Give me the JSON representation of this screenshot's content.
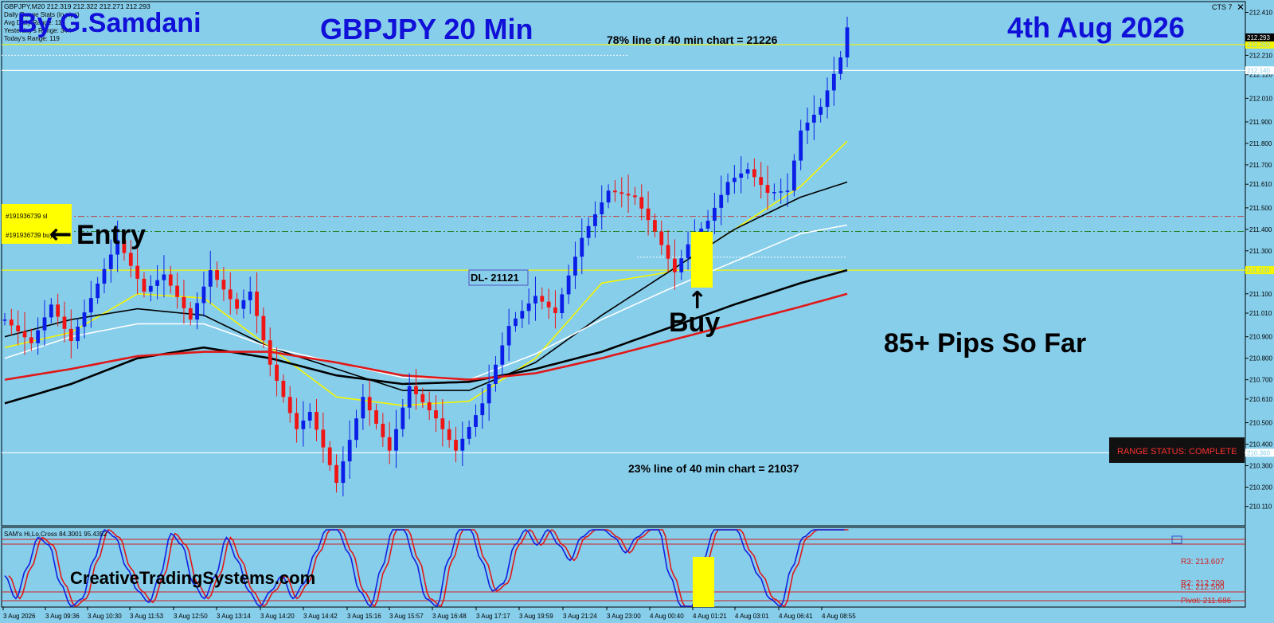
{
  "header": {
    "symbol_line": "GBPJPY,M20  212.319 212.322 212.271 212.293",
    "info_lines": [
      "Daily Range Stats (in pips)",
      "Avg Daily Range: 118",
      "Yesterday's Range: 344",
      "Today's Range: 119"
    ],
    "author": "By G.Samdani",
    "pair_tf": "GBPJPY 20 Min",
    "date": "4th Aug 2026",
    "version": "CTS 7"
  },
  "annotations": {
    "line78": "78% line of 40 min chart = 21226",
    "line23": "23% line of 40 min chart = 21037",
    "dl_label": "DL- 21121",
    "buy": "Buy",
    "entry": "Entry",
    "pips": "85+ Pips So Far",
    "range_status": "RANGE STATUS: COMPLETE",
    "website": "CreativeTradingSystems.com",
    "order_sl": "#191936739 sl",
    "order_buy": "#191936739 buy"
  },
  "colors": {
    "background": "#87ceeb",
    "bull": "#0a1ee8",
    "bear": "#f01414",
    "title": "#1010d8",
    "ma_yellow": "#f5f500",
    "ma_white": "#ffffff",
    "ma_black": "#000000",
    "ma_red": "#e01818"
  },
  "chart_data": {
    "type": "line",
    "title": "GBPJPY 20 Min",
    "ylim": [
      210.02,
      212.46
    ],
    "y_ticks": [
      "212.410",
      "212.210",
      "212.120",
      "212.010",
      "211.900",
      "211.800",
      "211.700",
      "211.610",
      "211.500",
      "211.400",
      "211.300",
      "211.210",
      "211.100",
      "211.010",
      "210.900",
      "210.800",
      "210.700",
      "210.610",
      "210.500",
      "210.400",
      "210.300",
      "210.200",
      "210.110"
    ],
    "x_ticks": [
      "3 Aug 2026",
      "3 Aug 09:36",
      "3 Aug 10:30",
      "3 Aug 11:53",
      "3 Aug 12:50",
      "3 Aug 13:14",
      "3 Aug 14:20",
      "3 Aug 14:42",
      "3 Aug 15:16",
      "3 Aug 15:57",
      "3 Aug 16:48",
      "3 Aug 17:17",
      "3 Aug 19:59",
      "3 Aug 21:24",
      "3 Aug 23:00",
      "4 Aug 00:40",
      "4 Aug 01:21",
      "4 Aug 03:01",
      "4 Aug 06:41",
      "4 Aug 08:55"
    ],
    "price_path": [
      [
        0,
        210.98
      ],
      [
        4,
        210.87
      ],
      [
        7,
        211.05
      ],
      [
        10,
        210.88
      ],
      [
        13,
        211.08
      ],
      [
        17,
        211.35
      ],
      [
        21,
        211.11
      ],
      [
        24,
        211.19
      ],
      [
        28,
        210.98
      ],
      [
        31,
        211.21
      ],
      [
        35,
        211.03
      ],
      [
        37,
        211.11
      ],
      [
        40,
        210.77
      ],
      [
        44,
        210.47
      ],
      [
        46,
        210.55
      ],
      [
        50,
        210.22
      ],
      [
        54,
        210.62
      ],
      [
        58,
        210.37
      ],
      [
        61,
        210.67
      ],
      [
        65,
        210.52
      ],
      [
        68,
        210.37
      ],
      [
        72,
        210.59
      ],
      [
        76,
        210.95
      ],
      [
        80,
        211.09
      ],
      [
        83,
        211.01
      ],
      [
        87,
        211.36
      ],
      [
        91,
        211.58
      ],
      [
        95,
        211.55
      ],
      [
        98,
        211.39
      ],
      [
        101,
        211.2
      ],
      [
        103,
        211.33
      ],
      [
        106,
        211.44
      ],
      [
        109,
        211.62
      ],
      [
        112,
        211.68
      ],
      [
        115,
        211.57
      ],
      [
        118,
        211.58
      ],
      [
        120,
        211.86
      ],
      [
        123,
        211.97
      ],
      [
        126,
        212.2
      ],
      [
        127,
        212.34
      ]
    ],
    "series": [
      {
        "name": "",
        "color": "#f5f500",
        "values": [
          [
            0,
            210.85
          ],
          [
            10,
            210.92
          ],
          [
            20,
            211.1
          ],
          [
            30,
            211.08
          ],
          [
            40,
            210.85
          ],
          [
            50,
            210.62
          ],
          [
            60,
            210.58
          ],
          [
            70,
            210.6
          ],
          [
            80,
            210.8
          ],
          [
            90,
            211.15
          ],
          [
            100,
            211.2
          ],
          [
            110,
            211.4
          ],
          [
            120,
            211.6
          ],
          [
            127,
            211.81
          ]
        ]
      },
      {
        "name": "",
        "color": "#000000",
        "values": [
          [
            0,
            210.9
          ],
          [
            10,
            210.98
          ],
          [
            20,
            211.03
          ],
          [
            30,
            211.0
          ],
          [
            40,
            210.85
          ],
          [
            50,
            210.75
          ],
          [
            60,
            210.65
          ],
          [
            70,
            210.65
          ],
          [
            80,
            210.78
          ],
          [
            90,
            211.0
          ],
          [
            100,
            211.2
          ],
          [
            110,
            211.4
          ],
          [
            120,
            211.55
          ],
          [
            127,
            211.62
          ]
        ]
      },
      {
        "name": "",
        "color": "#ffffff",
        "values": [
          [
            0,
            210.8
          ],
          [
            10,
            210.9
          ],
          [
            20,
            210.96
          ],
          [
            30,
            210.96
          ],
          [
            40,
            210.85
          ],
          [
            50,
            210.78
          ],
          [
            60,
            210.71
          ],
          [
            70,
            210.7
          ],
          [
            80,
            210.82
          ],
          [
            90,
            210.98
          ],
          [
            100,
            211.12
          ],
          [
            110,
            211.25
          ],
          [
            120,
            211.38
          ],
          [
            127,
            211.42
          ]
        ]
      },
      {
        "name": "",
        "color": "#000000",
        "values": [
          [
            0,
            210.59
          ],
          [
            10,
            210.68
          ],
          [
            20,
            210.8
          ],
          [
            30,
            210.85
          ],
          [
            40,
            210.8
          ],
          [
            50,
            210.72
          ],
          [
            60,
            210.68
          ],
          [
            70,
            210.69
          ],
          [
            80,
            210.75
          ],
          [
            90,
            210.83
          ],
          [
            100,
            210.94
          ],
          [
            110,
            211.05
          ],
          [
            120,
            211.15
          ],
          [
            127,
            211.21
          ]
        ]
      },
      {
        "name": "",
        "color": "#e01818",
        "values": [
          [
            0,
            210.7
          ],
          [
            10,
            210.75
          ],
          [
            20,
            210.81
          ],
          [
            30,
            210.83
          ],
          [
            40,
            210.83
          ],
          [
            50,
            210.78
          ],
          [
            60,
            210.72
          ],
          [
            70,
            210.7
          ],
          [
            80,
            210.73
          ],
          [
            90,
            210.8
          ],
          [
            100,
            210.88
          ],
          [
            110,
            210.96
          ],
          [
            120,
            211.04
          ],
          [
            127,
            211.1
          ]
        ]
      }
    ],
    "levels": [
      {
        "y": 212.26,
        "color": "#f5f500",
        "label": "212.260"
      },
      {
        "y": 212.14,
        "color": "#ffffff",
        "label": "212.140"
      },
      {
        "y": 211.21,
        "color": "#f5f500",
        "label": "211.210"
      },
      {
        "y": 210.36,
        "color": "#ffffff",
        "label": "210.360"
      }
    ],
    "current_price": "212.293",
    "oscillator": {
      "title": "SAM's Hi,Lo,Cross 84.3001 95.4352",
      "levels_right": [
        "R3: 213.607",
        "R2: 212.709",
        "R1: 212.500",
        "Pivot: 211.686"
      ],
      "values": [
        0.4,
        0.1,
        0.5,
        0.9,
        0.8,
        0.3,
        0.0,
        0.1,
        0.6,
        1.0,
        0.9,
        0.5,
        0.2,
        0.05,
        0.4,
        0.95,
        0.8,
        0.3,
        0.1,
        0.4,
        0.9,
        0.6,
        0.2,
        0.0,
        0.2,
        0.4,
        0.1,
        0.3,
        0.7,
        1.0,
        1.0,
        0.7,
        0.2,
        0.0,
        0.5,
        1.0,
        1.0,
        0.6,
        0.1,
        0.0,
        0.6,
        1.0,
        1.0,
        0.6,
        0.2,
        0.3,
        0.8,
        1.0,
        0.8,
        1.0,
        0.8,
        0.6,
        0.9,
        1.0,
        1.0,
        0.9,
        0.7,
        0.9,
        1.0,
        1.0,
        0.4,
        0.0,
        0.0,
        0.6,
        1.0,
        1.0,
        1.0,
        0.7,
        0.4,
        0.1,
        0.0,
        0.5,
        0.9,
        1.0,
        1.0,
        1.0,
        1.0
      ]
    }
  }
}
